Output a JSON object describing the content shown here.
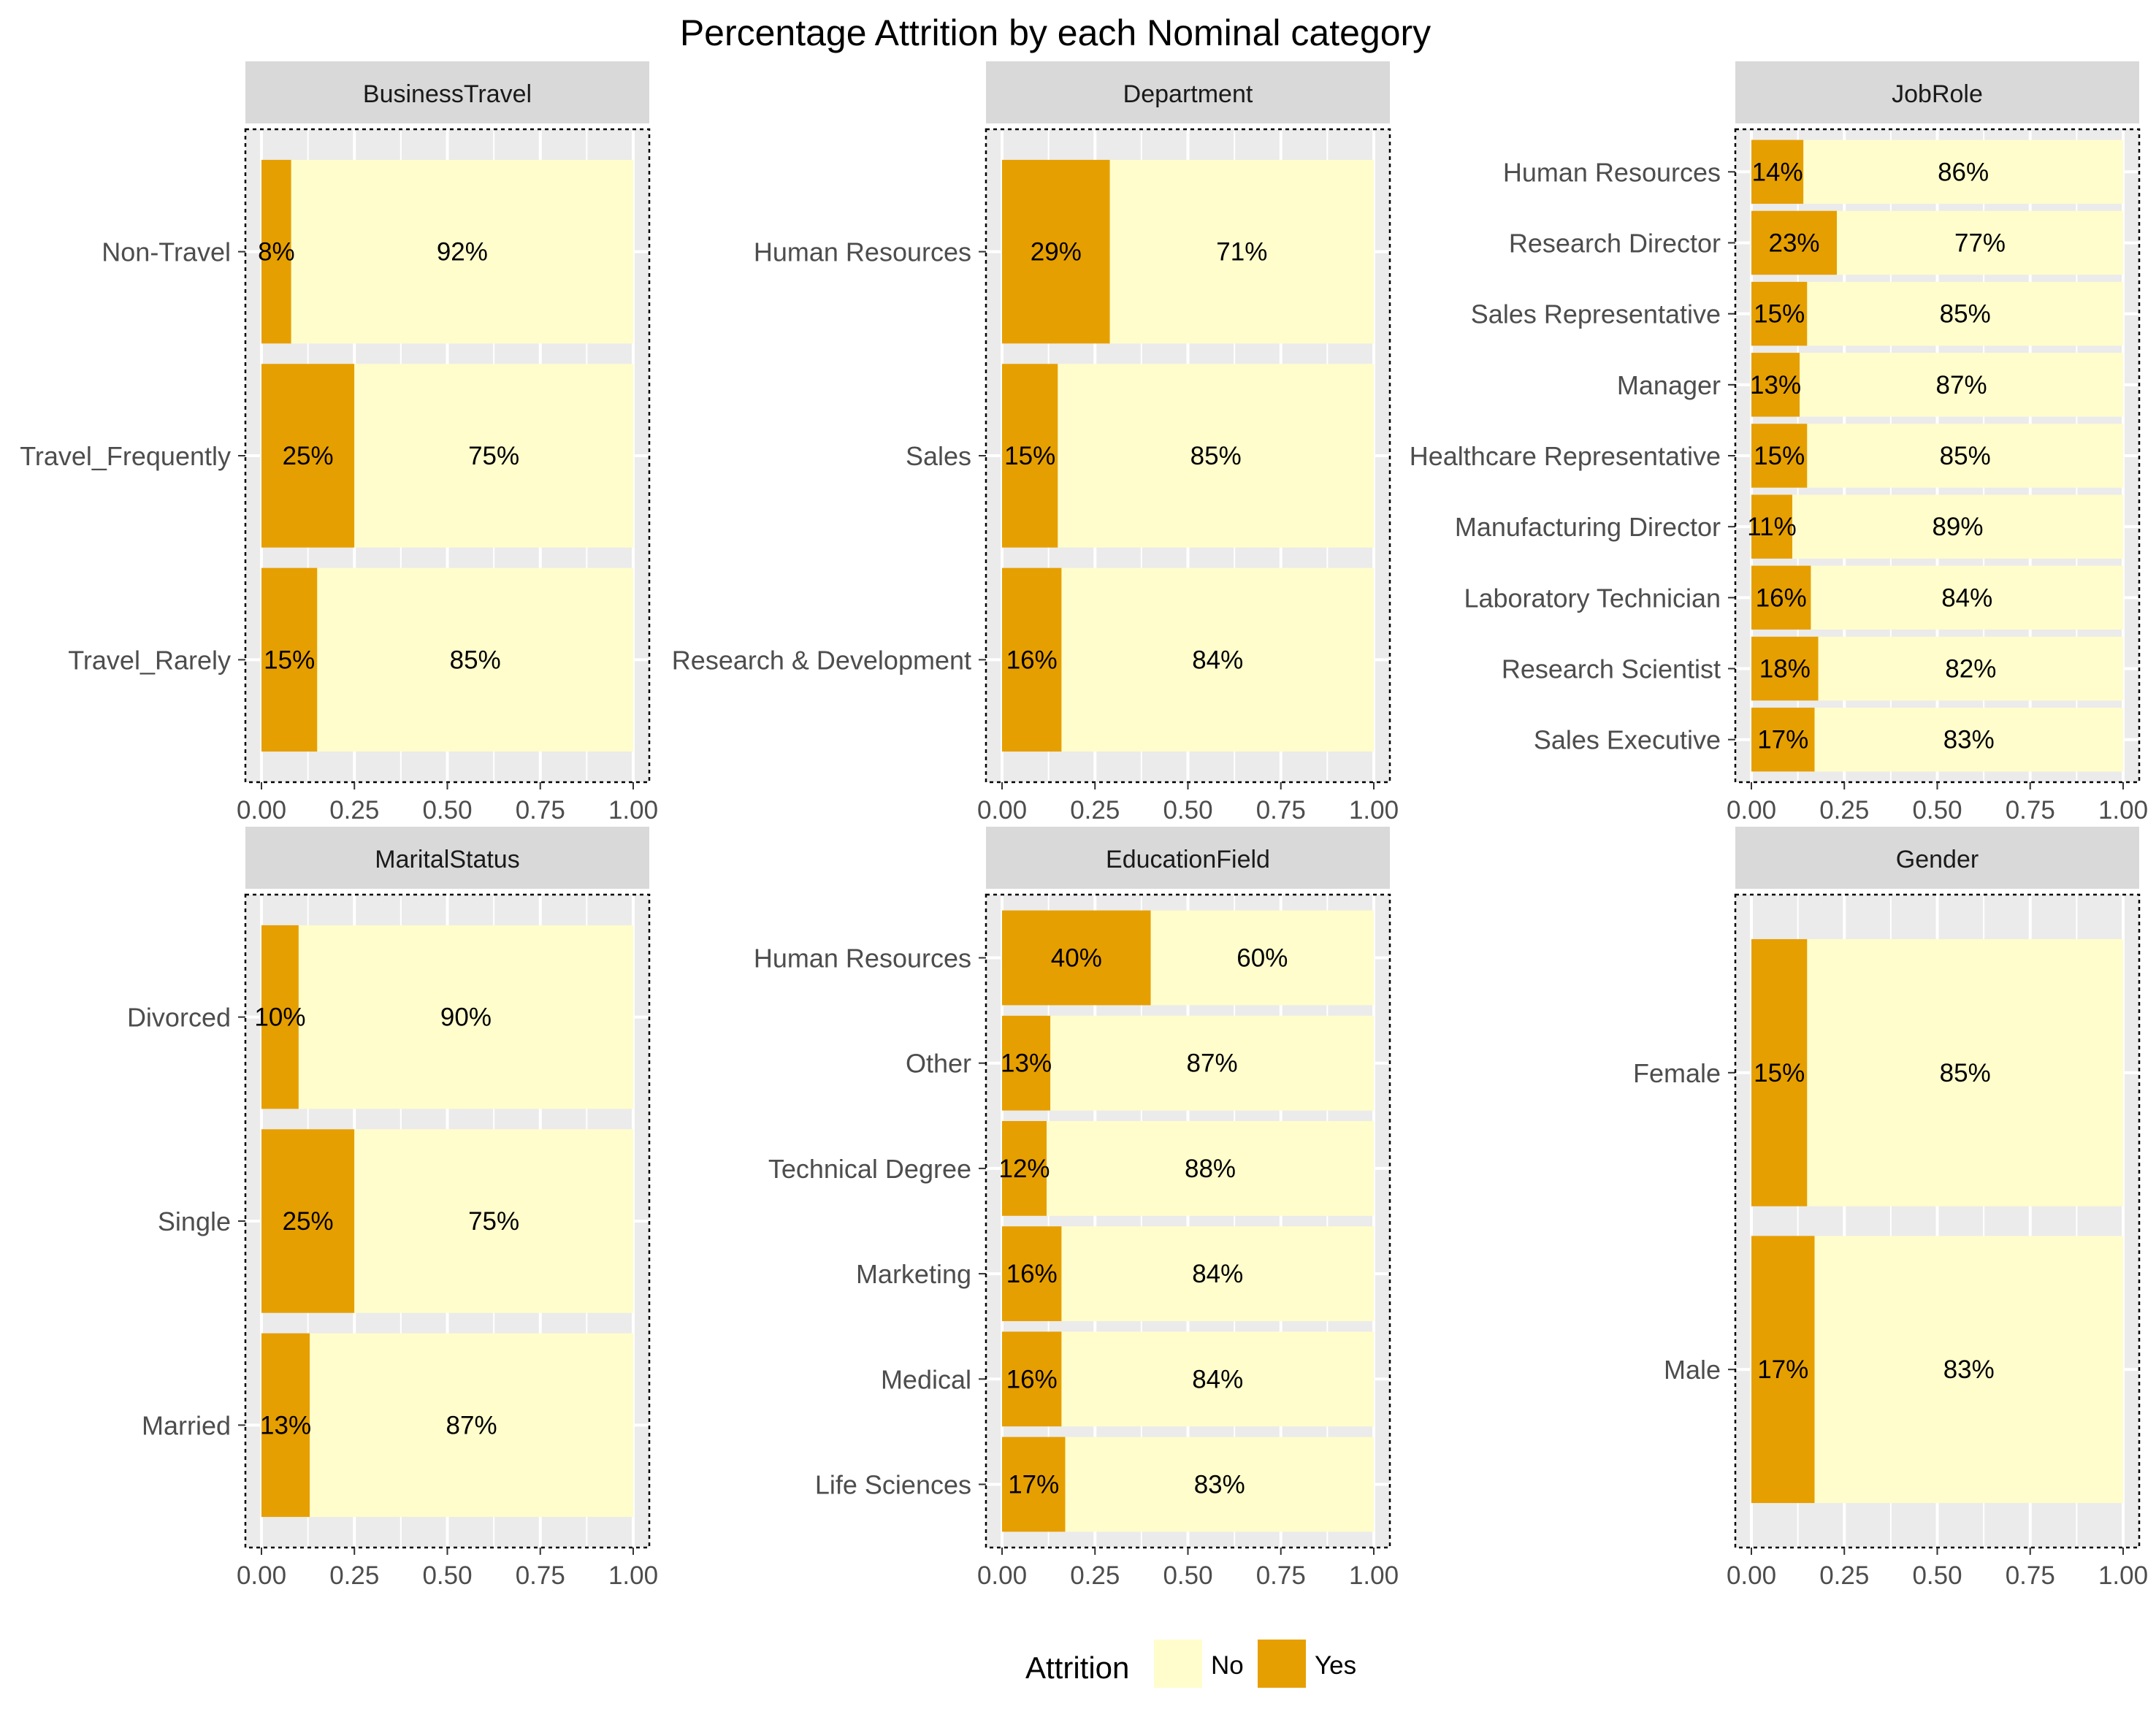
{
  "chart_data": {
    "type": "bar",
    "orientation": "horizontal",
    "stacked": true,
    "title": "Percentage Attrition by each Nominal category",
    "xlim": [
      0,
      1
    ],
    "x_ticks": [
      "0.00",
      "0.25",
      "0.50",
      "0.75",
      "1.00"
    ],
    "grid": true,
    "legend": {
      "title": "Attrition",
      "position": "bottom",
      "entries": [
        {
          "label": "No",
          "color": "#FFFDCC"
        },
        {
          "label": "Yes",
          "color": "#E69F00"
        }
      ]
    },
    "colors": {
      "Yes": "#E69F00",
      "No": "#FFFDCC",
      "panel_bg": "#EBEBEB",
      "strip_bg": "#D9D9D9",
      "grid": "#ffffff"
    },
    "panels": [
      {
        "title": "BusinessTravel",
        "categories": [
          "Non-Travel",
          "Travel_Frequently",
          "Travel_Rarely"
        ],
        "series": [
          {
            "name": "Yes",
            "values": [
              0.08,
              0.25,
              0.15
            ],
            "labels": [
              "8%",
              "25%",
              "15%"
            ]
          },
          {
            "name": "No",
            "values": [
              0.92,
              0.75,
              0.85
            ],
            "labels": [
              "92%",
              "75%",
              "85%"
            ]
          }
        ]
      },
      {
        "title": "Department",
        "categories": [
          "Human Resources",
          "Sales",
          "Research & Development"
        ],
        "series": [
          {
            "name": "Yes",
            "values": [
              0.29,
              0.15,
              0.16
            ],
            "labels": [
              "29%",
              "15%",
              "16%"
            ]
          },
          {
            "name": "No",
            "values": [
              0.71,
              0.85,
              0.84
            ],
            "labels": [
              "71%",
              "85%",
              "84%"
            ]
          }
        ]
      },
      {
        "title": "JobRole",
        "categories": [
          "Human Resources",
          "Research Director",
          "Sales Representative",
          "Manager",
          "Healthcare Representative",
          "Manufacturing Director",
          "Laboratory Technician",
          "Research Scientist",
          "Sales Executive"
        ],
        "series": [
          {
            "name": "Yes",
            "values": [
              0.14,
              0.23,
              0.15,
              0.13,
              0.15,
              0.11,
              0.16,
              0.18,
              0.17
            ],
            "labels": [
              "14%",
              "23%",
              "15%",
              "13%",
              "15%",
              "11%",
              "16%",
              "18%",
              "17%"
            ]
          },
          {
            "name": "No",
            "values": [
              0.86,
              0.77,
              0.85,
              0.87,
              0.85,
              0.89,
              0.84,
              0.82,
              0.83
            ],
            "labels": [
              "86%",
              "77%",
              "85%",
              "87%",
              "85%",
              "89%",
              "84%",
              "82%",
              "83%"
            ]
          }
        ]
      },
      {
        "title": "MaritalStatus",
        "categories": [
          "Divorced",
          "Single",
          "Married"
        ],
        "series": [
          {
            "name": "Yes",
            "values": [
              0.1,
              0.25,
              0.13
            ],
            "labels": [
              "10%",
              "25%",
              "13%"
            ]
          },
          {
            "name": "No",
            "values": [
              0.9,
              0.75,
              0.87
            ],
            "labels": [
              "90%",
              "75%",
              "87%"
            ]
          }
        ]
      },
      {
        "title": "EducationField",
        "categories": [
          "Human Resources",
          "Other",
          "Technical Degree",
          "Marketing",
          "Medical",
          "Life Sciences"
        ],
        "series": [
          {
            "name": "Yes",
            "values": [
              0.4,
              0.13,
              0.12,
              0.16,
              0.16,
              0.17
            ],
            "labels": [
              "40%",
              "13%",
              "12%",
              "16%",
              "16%",
              "17%"
            ]
          },
          {
            "name": "No",
            "values": [
              0.6,
              0.87,
              0.88,
              0.84,
              0.84,
              0.83
            ],
            "labels": [
              "60%",
              "87%",
              "88%",
              "84%",
              "84%",
              "83%"
            ]
          }
        ]
      },
      {
        "title": "Gender",
        "categories": [
          "Female",
          "Male"
        ],
        "series": [
          {
            "name": "Yes",
            "values": [
              0.15,
              0.17
            ],
            "labels": [
              "15%",
              "17%"
            ]
          },
          {
            "name": "No",
            "values": [
              0.85,
              0.83
            ],
            "labels": [
              "85%",
              "83%"
            ]
          }
        ]
      }
    ]
  }
}
